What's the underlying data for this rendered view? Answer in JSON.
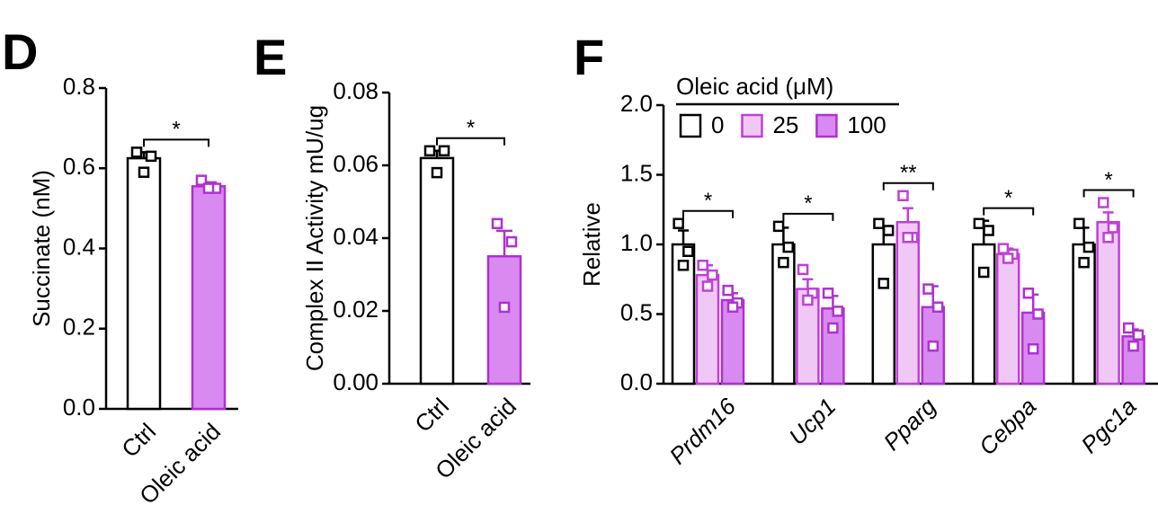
{
  "chart_data": [
    {
      "type": "bar",
      "panel": "D",
      "ylabel": "Succinate (nM)",
      "categories": [
        "Ctrl",
        "Oleic acid"
      ],
      "values": [
        0.625,
        0.555
      ],
      "errors": [
        0.015,
        0.01
      ],
      "points": [
        [
          0.64,
          0.63,
          0.59
        ],
        [
          0.57,
          0.55,
          0.55
        ]
      ],
      "colors": [
        "#ffffff",
        "#d98af0"
      ],
      "edge_colors": [
        "#000000",
        "#b030d0"
      ],
      "ylim": [
        0,
        0.8
      ],
      "yticks": [
        {
          "value": 0,
          "label": "0.0"
        },
        {
          "value": 0.2,
          "label": "0.2"
        },
        {
          "value": 0.4,
          "label": "0.4"
        },
        {
          "value": 0.6,
          "label": "0.6"
        },
        {
          "value": 0.8,
          "label": "0.8"
        }
      ],
      "significance": [
        "*"
      ]
    },
    {
      "type": "bar",
      "panel": "E",
      "ylabel": "Complex II Activity mU/ug",
      "categories": [
        "Ctrl",
        "Oleic acid"
      ],
      "values": [
        0.062,
        0.035
      ],
      "errors": [
        0.002,
        0.007
      ],
      "points": [
        [
          0.064,
          0.064,
          0.058
        ],
        [
          0.044,
          0.039,
          0.021
        ]
      ],
      "colors": [
        "#ffffff",
        "#d98af0"
      ],
      "edge_colors": [
        "#000000",
        "#b030d0"
      ],
      "ylim": [
        0,
        0.08
      ],
      "yticks": [
        {
          "value": 0,
          "label": "0.00"
        },
        {
          "value": 0.02,
          "label": "0.02"
        },
        {
          "value": 0.04,
          "label": "0.04"
        },
        {
          "value": 0.06,
          "label": "0.06"
        },
        {
          "value": 0.08,
          "label": "0.08"
        }
      ],
      "significance": [
        "*"
      ]
    },
    {
      "type": "grouped_bar",
      "panel": "F",
      "ylabel": "Relative",
      "legend_title": "Oleic acid (μM)",
      "category_style": "italic",
      "categories": [
        "Prdm16",
        "Ucp1",
        "Pparg",
        "Cebpa",
        "Pgc1a"
      ],
      "series": [
        {
          "name": "0",
          "color": "#ffffff",
          "edge_color": "#000000",
          "values": [
            1.0,
            1.0,
            1.0,
            1.0,
            1.0
          ],
          "errors": [
            0.1,
            0.12,
            0.13,
            0.17,
            0.12
          ],
          "points": [
            [
              1.15,
              0.95,
              0.85
            ],
            [
              1.13,
              0.98,
              0.87
            ],
            [
              1.15,
              1.1,
              0.72
            ],
            [
              1.15,
              1.1,
              0.8
            ],
            [
              1.15,
              0.98,
              0.87
            ]
          ]
        },
        {
          "name": "25",
          "color": "#f0c8f5",
          "edge_color": "#c040d8",
          "values": [
            0.78,
            0.68,
            1.16,
            0.93,
            1.16
          ],
          "errors": [
            0.07,
            0.07,
            0.1,
            0.04,
            0.07
          ],
          "points": [
            [
              0.85,
              0.78,
              0.7
            ],
            [
              0.82,
              0.65,
              0.6
            ],
            [
              1.35,
              1.05,
              1.05
            ],
            [
              0.97,
              0.93,
              0.9
            ],
            [
              1.3,
              1.12,
              1.05
            ]
          ]
        },
        {
          "name": "100",
          "color": "#d98af0",
          "edge_color": "#b030d0",
          "values": [
            0.6,
            0.54,
            0.55,
            0.51,
            0.34
          ],
          "errors": [
            0.05,
            0.09,
            0.15,
            0.13,
            0.05
          ],
          "points": [
            [
              0.67,
              0.58,
              0.55
            ],
            [
              0.65,
              0.52,
              0.4
            ],
            [
              0.68,
              0.55,
              0.27
            ],
            [
              0.65,
              0.5,
              0.25
            ],
            [
              0.4,
              0.35,
              0.27
            ]
          ]
        }
      ],
      "ylim": [
        0,
        2
      ],
      "yticks": [
        {
          "value": 0,
          "label": "0.0"
        },
        {
          "value": 0.5,
          "label": "0.5"
        },
        {
          "value": 1,
          "label": "1.0"
        },
        {
          "value": 1.5,
          "label": "1.5"
        },
        {
          "value": 2,
          "label": "2.0"
        }
      ],
      "significance": [
        "*",
        "*",
        "**",
        "*",
        "*"
      ]
    }
  ]
}
